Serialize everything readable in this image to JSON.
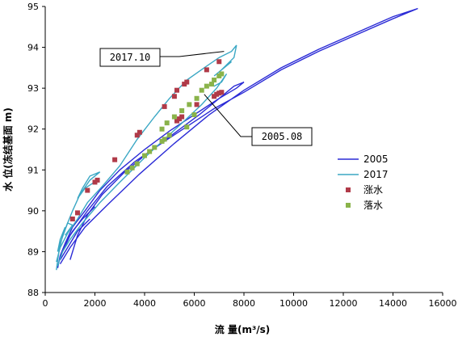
{
  "chart_data": {
    "type": "line",
    "xlabel": "流  量(m³/s)",
    "ylabel": "水 位(冻结基面 m)",
    "xlim": [
      0,
      16000
    ],
    "ylim": [
      88,
      95
    ],
    "x_ticks": [
      "0",
      "2000",
      "4000",
      "6000",
      "8000",
      "10000",
      "12000",
      "14000",
      "16000"
    ],
    "y_ticks": [
      "88",
      "89",
      "90",
      "91",
      "92",
      "93",
      "94",
      "95"
    ],
    "grid": false,
    "legend_position": "right",
    "colors": {
      "2005": "#2b2bd6",
      "2017": "#3aa7c4",
      "rising": "#b03a48",
      "falling": "#8ab34a"
    },
    "series": [
      {
        "name": "2005",
        "kind": "line",
        "color_key": "2005",
        "paths": [
          [
            [
              1000,
              88.8
            ],
            [
              1300,
              89.4
            ],
            [
              1700,
              89.9
            ],
            [
              2300,
              90.4
            ],
            [
              3200,
              90.95
            ],
            [
              4200,
              91.45
            ],
            [
              5200,
              91.9
            ],
            [
              6200,
              92.35
            ],
            [
              7000,
              92.75
            ],
            [
              7600,
              93.05
            ],
            [
              8000,
              93.15
            ],
            [
              7700,
              93.0
            ],
            [
              7000,
              92.75
            ],
            [
              6000,
              92.35
            ],
            [
              5000,
              91.95
            ],
            [
              4000,
              91.5
            ],
            [
              3000,
              91.0
            ],
            [
              2200,
              90.5
            ],
            [
              1600,
              90.0
            ],
            [
              1100,
              89.6
            ],
            [
              800,
              89.2
            ],
            [
              600,
              88.9
            ],
            [
              500,
              88.6
            ]
          ],
          [
            [
              600,
              88.7
            ],
            [
              1000,
              89.1
            ],
            [
              1600,
              89.6
            ],
            [
              2600,
              90.2
            ],
            [
              3800,
              90.9
            ],
            [
              5200,
              91.65
            ],
            [
              6600,
              92.35
            ],
            [
              8000,
              92.95
            ],
            [
              9500,
              93.5
            ],
            [
              11000,
              93.95
            ],
            [
              12500,
              94.35
            ],
            [
              14000,
              94.75
            ],
            [
              15000,
              94.95
            ],
            [
              14000,
              94.7
            ],
            [
              12500,
              94.3
            ],
            [
              11000,
              93.9
            ],
            [
              9500,
              93.45
            ],
            [
              8000,
              92.9
            ],
            [
              6800,
              92.5
            ],
            [
              5800,
              92.1
            ],
            [
              4800,
              91.7
            ],
            [
              3600,
              91.2
            ],
            [
              2500,
              90.6
            ],
            [
              1700,
              90.0
            ],
            [
              1000,
              89.4
            ],
            [
              700,
              89.0
            ]
          ],
          [
            [
              800,
              89.2
            ],
            [
              1100,
              89.5
            ],
            [
              1500,
              89.8
            ],
            [
              2000,
              90.1
            ]
          ],
          [
            [
              600,
              88.8
            ],
            [
              900,
              89.1
            ],
            [
              1300,
              89.5
            ],
            [
              1800,
              89.8
            ]
          ]
        ]
      },
      {
        "name": "2017",
        "kind": "line",
        "color_key": "2017",
        "paths": [
          [
            [
              450,
              88.55
            ],
            [
              550,
              89.0
            ],
            [
              700,
              89.4
            ],
            [
              900,
              89.7
            ],
            [
              1100,
              90.0
            ],
            [
              1400,
              90.4
            ],
            [
              1800,
              90.75
            ],
            [
              2200,
              90.95
            ],
            [
              1800,
              90.85
            ],
            [
              1500,
              90.55
            ],
            [
              1300,
              90.3
            ],
            [
              1600,
              90.55
            ],
            [
              2100,
              90.75
            ]
          ],
          [
            [
              450,
              88.75
            ],
            [
              600,
              89.1
            ],
            [
              900,
              89.45
            ],
            [
              1300,
              89.8
            ],
            [
              1700,
              90.2
            ],
            [
              2300,
              90.6
            ],
            [
              3000,
              91.1
            ],
            [
              3700,
              91.75
            ],
            [
              4400,
              92.3
            ],
            [
              5000,
              92.75
            ],
            [
              5700,
              93.2
            ],
            [
              6400,
              93.5
            ],
            [
              7000,
              93.75
            ],
            [
              7500,
              93.9
            ],
            [
              7700,
              94.05
            ],
            [
              7600,
              93.75
            ],
            [
              7100,
              93.45
            ],
            [
              6800,
              93.3
            ],
            [
              7200,
              93.5
            ],
            [
              7500,
              93.65
            ]
          ],
          [
            [
              500,
              88.65
            ],
            [
              700,
              89.0
            ],
            [
              1000,
              89.3
            ],
            [
              1500,
              89.7
            ],
            [
              2200,
              90.2
            ],
            [
              3000,
              90.7
            ],
            [
              4000,
              91.3
            ],
            [
              4800,
              91.75
            ],
            [
              5600,
              92.2
            ],
            [
              6300,
              92.6
            ],
            [
              6900,
              93.0
            ],
            [
              7300,
              93.35
            ],
            [
              7100,
              93.15
            ],
            [
              6800,
              93.05
            ],
            [
              6600,
              93.1
            ]
          ],
          [
            [
              800,
              89.6
            ],
            [
              600,
              89.3
            ],
            [
              500,
              89.0
            ],
            [
              600,
              89.2
            ],
            [
              900,
              89.7
            ],
            [
              1100,
              89.65
            ],
            [
              800,
              89.4
            ]
          ]
        ]
      },
      {
        "name": "涨水",
        "kind": "marker",
        "shape": "square",
        "color_key": "rising",
        "points": [
          [
            1100,
            89.8
          ],
          [
            1300,
            89.95
          ],
          [
            1700,
            90.5
          ],
          [
            2000,
            90.7
          ],
          [
            2100,
            90.75
          ],
          [
            2800,
            91.25
          ],
          [
            3700,
            91.85
          ],
          [
            3800,
            91.92
          ],
          [
            4800,
            92.55
          ],
          [
            5200,
            92.8
          ],
          [
            5300,
            92.95
          ],
          [
            5600,
            93.1
          ],
          [
            5700,
            93.15
          ],
          [
            6500,
            93.45
          ],
          [
            7000,
            93.65
          ],
          [
            5300,
            92.2
          ],
          [
            5400,
            92.25
          ],
          [
            5500,
            92.3
          ],
          [
            6100,
            92.6
          ],
          [
            6800,
            92.8
          ],
          [
            6900,
            92.85
          ],
          [
            7000,
            92.88
          ],
          [
            7100,
            92.9
          ]
        ]
      },
      {
        "name": "落水",
        "kind": "marker",
        "shape": "square",
        "color_key": "falling",
        "points": [
          [
            3300,
            90.95
          ],
          [
            3500,
            91.05
          ],
          [
            3700,
            91.15
          ],
          [
            4000,
            91.35
          ],
          [
            4200,
            91.45
          ],
          [
            4400,
            91.55
          ],
          [
            4700,
            91.7
          ],
          [
            4800,
            91.75
          ],
          [
            5000,
            91.85
          ],
          [
            5700,
            92.05
          ],
          [
            6000,
            92.35
          ],
          [
            4700,
            92.0
          ],
          [
            4900,
            92.15
          ],
          [
            5200,
            92.3
          ],
          [
            5500,
            92.45
          ],
          [
            5800,
            92.6
          ],
          [
            6100,
            92.75
          ],
          [
            6300,
            92.95
          ],
          [
            6500,
            93.05
          ],
          [
            6700,
            93.1
          ],
          [
            6800,
            93.2
          ],
          [
            7000,
            93.3
          ],
          [
            7100,
            93.35
          ]
        ]
      }
    ],
    "annotations": [
      {
        "text": "2017.10",
        "point": [
          7200,
          93.9
        ]
      },
      {
        "text": "2005.08",
        "point": [
          6400,
          92.85
        ]
      }
    ]
  }
}
